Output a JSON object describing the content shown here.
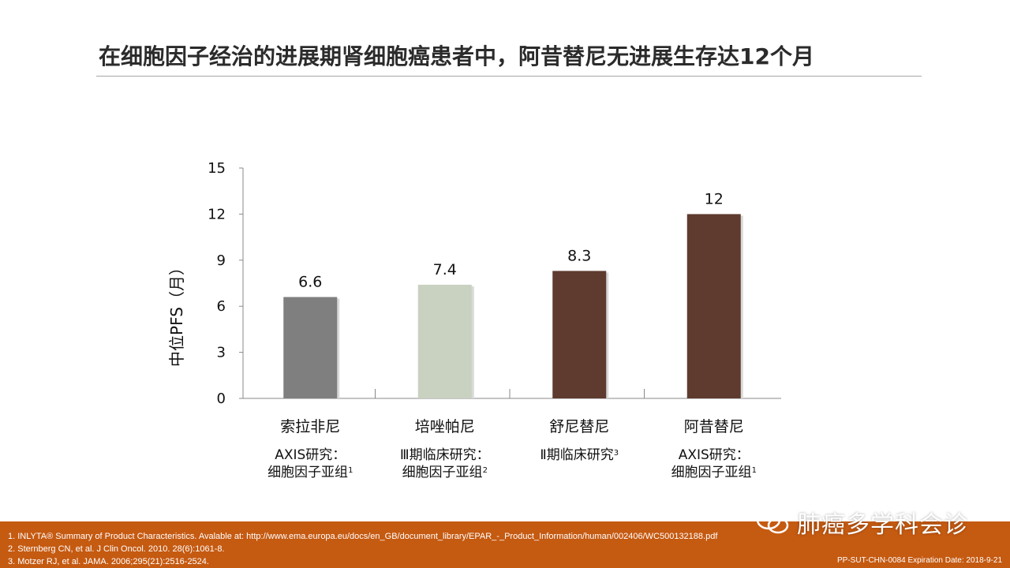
{
  "title": "在细胞因子经治的进展期肾细胞癌患者中，阿昔替尼无进展生存达12个月",
  "chart_data": {
    "type": "bar",
    "title": "",
    "xlabel": "",
    "ylabel": "中位PFS（月）",
    "ylim": [
      0,
      15
    ],
    "yticks": [
      0,
      3,
      6,
      9,
      12,
      15
    ],
    "categories": [
      "索拉非尼",
      "培唑帕尼",
      "舒尼替尼",
      "阿昔替尼"
    ],
    "values": [
      6.6,
      7.4,
      8.3,
      12
    ],
    "value_labels": [
      "6.6",
      "7.4",
      "8.3",
      "12"
    ],
    "bar_colors": [
      "#7f7f7f",
      "#c9d1c0",
      "#5e3b2e",
      "#5e3b2e"
    ],
    "subtitles": [
      {
        "line1": "AXIS研究：",
        "line2": "细胞因子亚组",
        "sup": "1"
      },
      {
        "line1": "Ⅲ期临床研究：",
        "line2": "细胞因子亚组",
        "sup": "2"
      },
      {
        "line1": "Ⅱ期临床研究",
        "line2": "",
        "sup": "3"
      },
      {
        "line1": "AXIS研究：",
        "line2": "细胞因子亚组",
        "sup": "1"
      }
    ]
  },
  "footer": {
    "references": [
      "1. INLYTA® Summary of Product Characteristics. Avalable at: http://www.ema.europa.eu/docs/en_GB/document_library/EPAR_-_Product_Information/human/002406/WC500132188.pdf",
      "2. Sternberg CN, et al. J Clin Oncol. 2010. 28(6):1061-8.",
      "3. Motzer RJ, et al. JAMA. 2006;295(21):2516-2524."
    ],
    "expiry": "PP-SUT-CHN-0084  Expiration Date: 2018-9-21",
    "watermark": "肺癌多学科会诊",
    "watermark_icon": "wechat-icon"
  }
}
